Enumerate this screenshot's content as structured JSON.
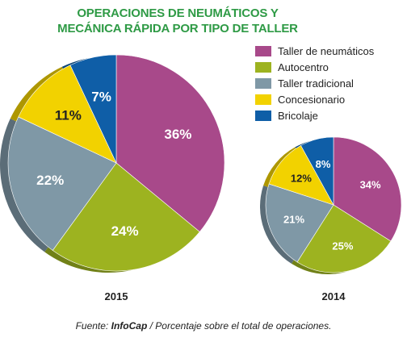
{
  "title_line1": "OPERACIONES DE NEUMÁTICOS Y",
  "title_line2": "MECÁNICA RÁPIDA POR TIPO DE TALLER",
  "legend": [
    {
      "label": "Taller de neumáticos",
      "color": "#a8498a"
    },
    {
      "label": "Autocentro",
      "color": "#9db320"
    },
    {
      "label": "Taller tradicional",
      "color": "#7f98a6"
    },
    {
      "label": "Concesionario",
      "color": "#f2d200"
    },
    {
      "label": "Bricolaje",
      "color": "#0f5ea7"
    }
  ],
  "source": {
    "prefix": "Fuente:",
    "name": "InfoCap",
    "rest": "/ Porcentaje sobre el total de operaciones."
  },
  "chart_data": [
    {
      "type": "pie",
      "label": "2015",
      "categories": [
        "Taller de neumáticos",
        "Autocentro",
        "Taller tradicional",
        "Concesionario",
        "Bricolaje"
      ],
      "values": [
        36,
        24,
        22,
        11,
        7
      ],
      "value_labels": [
        "36%",
        "24%",
        "22%",
        "11%",
        "7%"
      ]
    },
    {
      "type": "pie",
      "label": "2014",
      "categories": [
        "Taller de neumáticos",
        "Autocentro",
        "Taller tradicional",
        "Concesionario",
        "Bricolaje"
      ],
      "values": [
        34,
        25,
        21,
        12,
        8
      ],
      "value_labels": [
        "34%",
        "25%",
        "21%",
        "12%",
        "8%"
      ]
    }
  ]
}
